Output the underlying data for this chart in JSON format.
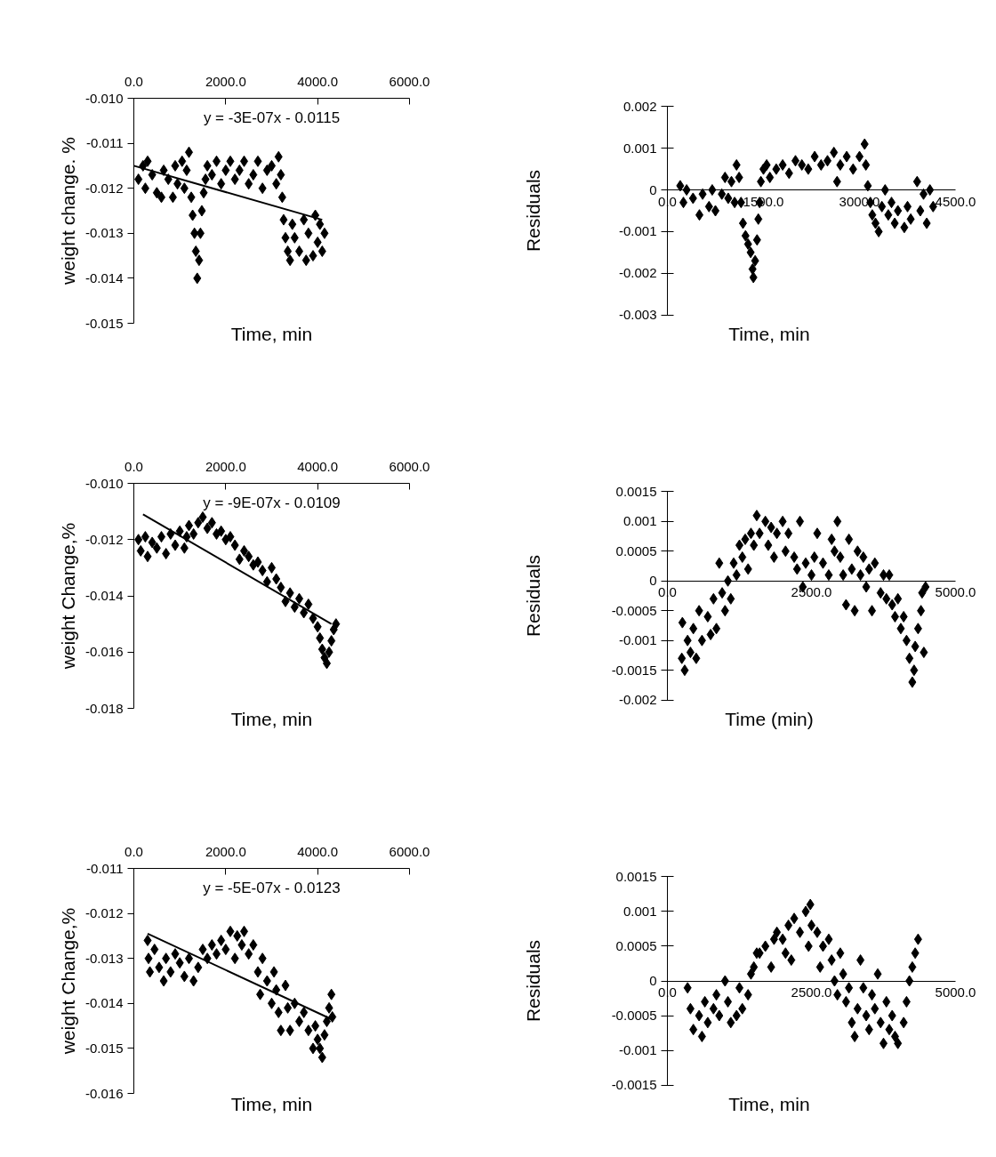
{
  "chart_data": [
    {
      "type": "scatter",
      "xlabel": "Time, min",
      "ylabel": "weight change. %",
      "marker": "diamond",
      "xlim": [
        0,
        6000
      ],
      "xticks": [
        {
          "value": 0,
          "label": "0.0"
        },
        {
          "value": 2000,
          "label": "2000.0"
        },
        {
          "value": 4000,
          "label": "4000.0"
        },
        {
          "value": 6000,
          "label": "6000.0"
        }
      ],
      "ylim": [
        -0.015,
        -0.01
      ],
      "yticks": [
        {
          "value": -0.01,
          "label": "-0.010"
        },
        -0.011,
        -0.012,
        -0.013,
        -0.014,
        -0.015
      ],
      "annotations": [
        "y = -3E-07x - 0.0115"
      ],
      "series": [
        {
          "type": "scatter",
          "color": "#000000",
          "x": [
            100,
            200,
            250,
            300,
            400,
            500,
            600,
            650,
            750,
            850,
            900,
            950,
            1050,
            1100,
            1150,
            1200,
            1250,
            1280,
            1320,
            1350,
            1380,
            1420,
            1450,
            1480,
            1520,
            1560,
            1600,
            1700,
            1800,
            1900,
            2000,
            2100,
            2200,
            2300,
            2400,
            2500,
            2600,
            2700,
            2800,
            2900,
            3000,
            3100,
            3150,
            3200,
            3230,
            3260,
            3300,
            3350,
            3400,
            3450,
            3500,
            3600,
            3700,
            3750,
            3800,
            3900,
            3950,
            4000,
            4050,
            4100,
            4150
          ],
          "values": [
            -0.0118,
            -0.0115,
            -0.012,
            -0.0114,
            -0.0117,
            -0.0121,
            -0.0122,
            -0.0116,
            -0.0118,
            -0.0122,
            -0.0115,
            -0.0119,
            -0.0114,
            -0.012,
            -0.0116,
            -0.0112,
            -0.0122,
            -0.0126,
            -0.013,
            -0.0134,
            -0.014,
            -0.0136,
            -0.013,
            -0.0125,
            -0.0121,
            -0.0118,
            -0.0115,
            -0.0117,
            -0.0114,
            -0.0119,
            -0.0116,
            -0.0114,
            -0.0118,
            -0.0116,
            -0.0114,
            -0.0119,
            -0.0117,
            -0.0114,
            -0.012,
            -0.0116,
            -0.0115,
            -0.0119,
            -0.0113,
            -0.0117,
            -0.0122,
            -0.0127,
            -0.0131,
            -0.0134,
            -0.0136,
            -0.0128,
            -0.0131,
            -0.0134,
            -0.0127,
            -0.0136,
            -0.013,
            -0.0135,
            -0.0126,
            -0.0132,
            -0.0128,
            -0.0134,
            -0.013
          ]
        },
        {
          "type": "line",
          "color": "#000000",
          "marker": "none",
          "x": [
            0,
            4100
          ],
          "values": [
            -0.0115,
            -0.0127
          ]
        }
      ]
    },
    {
      "type": "scatter",
      "xlabel": "Time, min",
      "ylabel": "Residuals",
      "marker": "diamond",
      "xlim": [
        0,
        4500
      ],
      "xticks": [
        {
          "value": 0,
          "label": "0.0"
        },
        {
          "value": 1500,
          "label": "1500.0"
        },
        {
          "value": 3000,
          "label": "3000.0"
        },
        {
          "value": 4500,
          "label": "4500.0"
        }
      ],
      "ylim": [
        -0.003,
        0.002
      ],
      "yticks": [
        0.002,
        0.001,
        0,
        -0.001,
        -0.002,
        -0.003
      ],
      "series": [
        {
          "type": "scatter",
          "color": "#000000",
          "x": [
            200,
            250,
            300,
            400,
            500,
            550,
            650,
            700,
            750,
            850,
            900,
            950,
            1000,
            1050,
            1080,
            1120,
            1150,
            1180,
            1220,
            1260,
            1300,
            1330,
            1343,
            1370,
            1400,
            1420,
            1440,
            1460,
            1500,
            1550,
            1600,
            1700,
            1800,
            1900,
            2000,
            2100,
            2200,
            2300,
            2400,
            2500,
            2600,
            2650,
            2700,
            2800,
            2900,
            3000,
            3080,
            3100,
            3130,
            3170,
            3200,
            3250,
            3300,
            3350,
            3400,
            3450,
            3500,
            3550,
            3600,
            3700,
            3750,
            3800,
            3900,
            3950,
            4000,
            4050,
            4100,
            4150
          ],
          "values": [
            0.0001,
            -0.0003,
            0.0,
            -0.0002,
            -0.0006,
            -0.0001,
            -0.0004,
            0.0,
            -0.0005,
            -0.0001,
            0.0003,
            -0.0002,
            0.0002,
            -0.0003,
            0.0006,
            0.0003,
            -0.0003,
            -0.0008,
            -0.0011,
            -0.0013,
            -0.0015,
            -0.0019,
            -0.0021,
            -0.0017,
            -0.0012,
            -0.0007,
            -0.0003,
            0.0002,
            0.0005,
            0.0006,
            0.0003,
            0.0005,
            0.0006,
            0.0004,
            0.0007,
            0.0006,
            0.0005,
            0.0008,
            0.0006,
            0.0007,
            0.0009,
            0.0002,
            0.0006,
            0.0008,
            0.0005,
            0.0008,
            0.0011,
            0.0006,
            0.0001,
            -0.0003,
            -0.0006,
            -0.0008,
            -0.001,
            -0.0004,
            0.0,
            -0.0006,
            -0.0003,
            -0.0008,
            -0.0005,
            -0.0009,
            -0.0004,
            -0.0007,
            0.0002,
            -0.0005,
            -0.0001,
            -0.0008,
            0.0,
            -0.0004
          ]
        }
      ]
    },
    {
      "type": "scatter",
      "xlabel": "Time, min",
      "ylabel": "weight Change,%",
      "marker": "diamond",
      "xlim": [
        0,
        6000
      ],
      "xticks": [
        {
          "value": 0,
          "label": "0.0"
        },
        {
          "value": 2000,
          "label": "2000.0"
        },
        {
          "value": 4000,
          "label": "4000.0"
        },
        {
          "value": 6000,
          "label": "6000.0"
        }
      ],
      "ylim": [
        -0.018,
        -0.01
      ],
      "yticks": [
        {
          "value": -0.01,
          "label": "-0.010"
        },
        -0.012,
        -0.014,
        -0.016,
        -0.018
      ],
      "annotations": [
        "y = -9E-07x - 0.0109"
      ],
      "series": [
        {
          "type": "scatter",
          "color": "#000000",
          "x": [
            100,
            150,
            250,
            300,
            400,
            500,
            600,
            700,
            800,
            900,
            1000,
            1100,
            1150,
            1200,
            1300,
            1400,
            1500,
            1600,
            1700,
            1800,
            1900,
            2000,
            2100,
            2200,
            2300,
            2400,
            2500,
            2600,
            2700,
            2800,
            2900,
            3000,
            3100,
            3200,
            3300,
            3400,
            3500,
            3600,
            3700,
            3800,
            3900,
            4000,
            4050,
            4100,
            4150,
            4200,
            4250,
            4300,
            4350,
            4400
          ],
          "values": [
            -0.012,
            -0.0124,
            -0.0119,
            -0.0126,
            -0.0121,
            -0.0123,
            -0.0119,
            -0.0125,
            -0.0118,
            -0.0122,
            -0.0117,
            -0.0123,
            -0.0119,
            -0.0115,
            -0.0118,
            -0.0114,
            -0.0112,
            -0.0116,
            -0.0114,
            -0.0118,
            -0.0117,
            -0.012,
            -0.0119,
            -0.0122,
            -0.0127,
            -0.0124,
            -0.0126,
            -0.0129,
            -0.0128,
            -0.0131,
            -0.0135,
            -0.013,
            -0.0134,
            -0.0137,
            -0.0142,
            -0.0139,
            -0.0144,
            -0.0141,
            -0.0146,
            -0.0143,
            -0.0148,
            -0.0151,
            -0.0155,
            -0.0159,
            -0.0162,
            -0.0164,
            -0.016,
            -0.0156,
            -0.0152,
            -0.015
          ]
        },
        {
          "type": "line",
          "color": "#000000",
          "marker": "none",
          "x": [
            200,
            4300
          ],
          "values": [
            -0.0111,
            -0.015
          ]
        }
      ]
    },
    {
      "type": "scatter",
      "xlabel": "Time (min)",
      "ylabel": "Residuals",
      "marker": "diamond",
      "xlim": [
        0,
        5000
      ],
      "xticks": [
        {
          "value": 0,
          "label": "0.0"
        },
        {
          "value": 2500,
          "label": "2500.0"
        },
        {
          "value": 5000,
          "label": "5000.0"
        }
      ],
      "ylim": [
        -0.002,
        0.0015
      ],
      "yticks": [
        0.0015,
        0.001,
        0.0005,
        0,
        -0.0005,
        -0.001,
        -0.0015,
        -0.002
      ],
      "series": [
        {
          "type": "scatter",
          "color": "#000000",
          "x": [
            250,
            260,
            300,
            350,
            400,
            450,
            500,
            550,
            600,
            700,
            750,
            800,
            850,
            900,
            950,
            1000,
            1050,
            1100,
            1150,
            1200,
            1250,
            1300,
            1350,
            1400,
            1450,
            1500,
            1550,
            1600,
            1700,
            1750,
            1800,
            1850,
            1900,
            2000,
            2050,
            2100,
            2200,
            2250,
            2300,
            2350,
            2400,
            2500,
            2550,
            2600,
            2700,
            2800,
            2850,
            2900,
            2950,
            3000,
            3050,
            3100,
            3150,
            3200,
            3250,
            3300,
            3350,
            3400,
            3450,
            3500,
            3550,
            3600,
            3700,
            3750,
            3800,
            3850,
            3900,
            3950,
            4000,
            4050,
            4100,
            4150,
            4200,
            4250,
            4280,
            4300,
            4350,
            4400,
            4420,
            4450,
            4480
          ],
          "values": [
            -0.0013,
            -0.0007,
            -0.0015,
            -0.001,
            -0.0012,
            -0.0008,
            -0.0013,
            -0.0005,
            -0.001,
            -0.0006,
            -0.0009,
            -0.0003,
            -0.0008,
            0.0003,
            -0.0002,
            -0.0005,
            0.0,
            -0.0003,
            0.0003,
            0.0001,
            0.0006,
            0.0004,
            0.0007,
            0.0002,
            0.0008,
            0.0006,
            0.0011,
            0.0008,
            0.001,
            0.0006,
            0.0009,
            0.0004,
            0.0008,
            0.001,
            0.0005,
            0.0008,
            0.0004,
            0.0002,
            0.001,
            -0.0001,
            0.0003,
            0.0001,
            0.0004,
            0.0008,
            0.0003,
            0.0001,
            0.0007,
            0.0005,
            0.001,
            0.0004,
            0.0001,
            -0.0004,
            0.0007,
            0.0002,
            -0.0005,
            0.0005,
            0.0001,
            0.0004,
            -0.0001,
            0.0002,
            -0.0005,
            0.0003,
            -0.0002,
            0.0001,
            -0.0003,
            0.0001,
            -0.0004,
            -0.0006,
            -0.0003,
            -0.0008,
            -0.0006,
            -0.001,
            -0.0013,
            -0.0017,
            -0.0015,
            -0.0011,
            -0.0008,
            -0.0005,
            -0.0002,
            -0.0012,
            -0.0001
          ]
        }
      ]
    },
    {
      "type": "scatter",
      "xlabel": "Time, min",
      "ylabel": "weight Change,%",
      "marker": "diamond",
      "xlim": [
        0,
        6000
      ],
      "xticks": [
        {
          "value": 0,
          "label": "0.0"
        },
        {
          "value": 2000,
          "label": "2000.0"
        },
        {
          "value": 4000,
          "label": "4000.0"
        },
        {
          "value": 6000,
          "label": "6000.0"
        }
      ],
      "ylim": [
        -0.016,
        -0.011
      ],
      "yticks": [
        -0.011,
        -0.012,
        -0.013,
        -0.014,
        -0.015,
        -0.016
      ],
      "annotations": [
        "y = -5E-07x - 0.0123"
      ],
      "series": [
        {
          "type": "scatter",
          "color": "#000000",
          "x": [
            300,
            320,
            350,
            450,
            550,
            650,
            700,
            800,
            900,
            1000,
            1100,
            1200,
            1300,
            1400,
            1500,
            1600,
            1700,
            1800,
            1900,
            2000,
            2100,
            2200,
            2250,
            2350,
            2400,
            2500,
            2600,
            2700,
            2750,
            2800,
            2900,
            3000,
            3050,
            3100,
            3150,
            3200,
            3300,
            3350,
            3400,
            3500,
            3600,
            3700,
            3800,
            3900,
            3950,
            4000,
            4050,
            4100,
            4150,
            4200,
            4250,
            4300,
            4320
          ],
          "values": [
            -0.0126,
            -0.013,
            -0.0133,
            -0.0128,
            -0.0132,
            -0.0135,
            -0.013,
            -0.0133,
            -0.0129,
            -0.0131,
            -0.0134,
            -0.013,
            -0.0135,
            -0.0132,
            -0.0128,
            -0.013,
            -0.0127,
            -0.0129,
            -0.0126,
            -0.0128,
            -0.0124,
            -0.013,
            -0.0125,
            -0.0127,
            -0.0124,
            -0.0129,
            -0.0127,
            -0.0133,
            -0.0138,
            -0.013,
            -0.0135,
            -0.014,
            -0.0133,
            -0.0137,
            -0.0142,
            -0.0146,
            -0.0136,
            -0.0141,
            -0.0146,
            -0.014,
            -0.0144,
            -0.0142,
            -0.0146,
            -0.015,
            -0.0145,
            -0.0148,
            -0.015,
            -0.0152,
            -0.0147,
            -0.0144,
            -0.0141,
            -0.0138,
            -0.0143
          ]
        },
        {
          "type": "line",
          "color": "#000000",
          "marker": "none",
          "x": [
            300,
            4300
          ],
          "values": [
            -0.01245,
            -0.01435
          ]
        }
      ]
    },
    {
      "type": "scatter",
      "xlabel": "Time, min",
      "ylabel": "Residuals",
      "marker": "diamond",
      "xlim": [
        0,
        5000
      ],
      "xticks": [
        {
          "value": 0,
          "label": "0.0"
        },
        {
          "value": 2500,
          "label": "2500.0"
        },
        {
          "value": 5000,
          "label": "5000.0"
        }
      ],
      "ylim": [
        -0.0015,
        0.0015
      ],
      "yticks": [
        0.0015,
        0.001,
        0.0005,
        0,
        -0.0005,
        -0.001,
        -0.0015
      ],
      "series": [
        {
          "type": "scatter",
          "color": "#000000",
          "x": [
            350,
            400,
            450,
            550,
            600,
            650,
            700,
            800,
            850,
            900,
            1000,
            1050,
            1100,
            1200,
            1250,
            1300,
            1400,
            1450,
            1500,
            1550,
            1600,
            1700,
            1800,
            1850,
            1900,
            2000,
            2050,
            2100,
            2150,
            2200,
            2300,
            2400,
            2450,
            2480,
            2500,
            2600,
            2650,
            2700,
            2800,
            2850,
            2900,
            2950,
            3000,
            3050,
            3100,
            3150,
            3200,
            3250,
            3300,
            3350,
            3400,
            3450,
            3500,
            3550,
            3600,
            3650,
            3700,
            3750,
            3800,
            3850,
            3900,
            3950,
            4000,
            4100,
            4150,
            4200,
            4250,
            4300,
            4350
          ],
          "values": [
            -0.0001,
            -0.0004,
            -0.0007,
            -0.0005,
            -0.0008,
            -0.0003,
            -0.0006,
            -0.0004,
            -0.0002,
            -0.0005,
            0.0,
            -0.0003,
            -0.0006,
            -0.0005,
            -0.0001,
            -0.0004,
            -0.0002,
            0.0001,
            0.0002,
            0.0004,
            0.0004,
            0.0005,
            0.0002,
            0.0006,
            0.0007,
            0.0006,
            0.0004,
            0.0008,
            0.0003,
            0.0009,
            0.0007,
            0.001,
            0.0005,
            0.0011,
            0.0008,
            0.0007,
            0.0002,
            0.0005,
            0.0006,
            0.0003,
            0.0,
            -0.0002,
            0.0004,
            0.0001,
            -0.0003,
            -0.0001,
            -0.0006,
            -0.0008,
            -0.0004,
            0.0003,
            -0.0001,
            -0.0005,
            -0.0007,
            -0.0002,
            -0.0004,
            0.0001,
            -0.0006,
            -0.0009,
            -0.0003,
            -0.0007,
            -0.0005,
            -0.0008,
            -0.0009,
            -0.0006,
            -0.0003,
            0.0,
            0.0002,
            0.0004,
            0.0006
          ]
        }
      ]
    }
  ]
}
